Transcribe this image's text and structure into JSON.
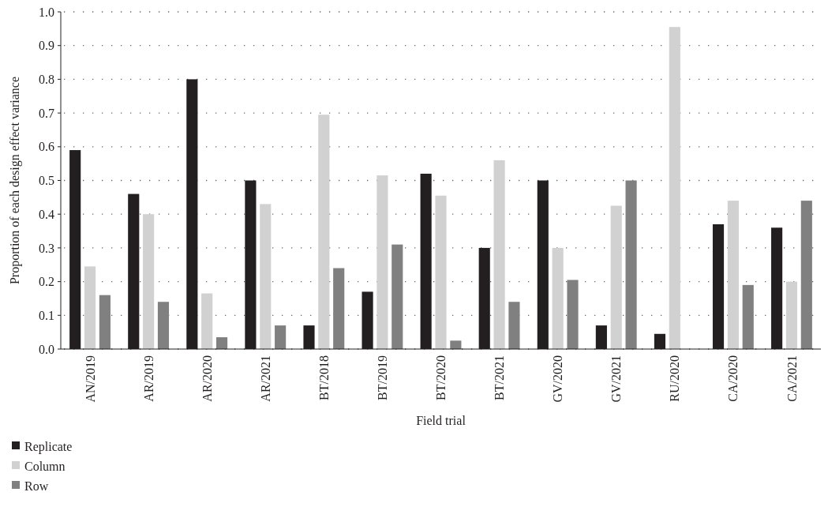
{
  "chart_data": {
    "type": "bar",
    "xlabel": "Field trial",
    "ylabel": "Proportion of each design effect variance",
    "categories": [
      "AN/2019",
      "AR/2019",
      "AR/2020",
      "AR/2021",
      "BT/2018",
      "BT/2019",
      "BT/2020",
      "BT/2021",
      "GV/2020",
      "GV/2021",
      "RU/2020",
      "CA/2020",
      "CA/2021"
    ],
    "series": [
      {
        "name": "Replicate",
        "color": "#231f20",
        "values": [
          0.59,
          0.46,
          0.8,
          0.5,
          0.07,
          0.17,
          0.52,
          0.3,
          0.5,
          0.07,
          0.045,
          0.37,
          0.36
        ]
      },
      {
        "name": "Column",
        "color": "#d1d1d1",
        "values": [
          0.245,
          0.4,
          0.165,
          0.43,
          0.695,
          0.515,
          0.455,
          0.56,
          0.3,
          0.425,
          0.955,
          0.44,
          0.2
        ]
      },
      {
        "name": "Row",
        "color": "#808080",
        "values": [
          0.16,
          0.14,
          0.035,
          0.07,
          0.24,
          0.31,
          0.025,
          0.14,
          0.205,
          0.5,
          null,
          0.19,
          0.44
        ]
      }
    ],
    "ylim": [
      0,
      1
    ],
    "yticks": [
      {
        "value": 0,
        "label": "0.0"
      },
      {
        "value": 0.1,
        "label": "0.1"
      },
      {
        "value": 0.2,
        "label": "0.2"
      },
      {
        "value": 0.3,
        "label": "0.3"
      },
      {
        "value": 0.4,
        "label": "0.4"
      },
      {
        "value": 0.5,
        "label": "0.5"
      },
      {
        "value": 0.6,
        "label": "0.6"
      },
      {
        "value": 0.7,
        "label": "0.7"
      },
      {
        "value": 0.8,
        "label": "0.8"
      },
      {
        "value": 0.9,
        "label": "0.9"
      },
      {
        "value": 1,
        "label": "1.0"
      }
    ],
    "grid": "y",
    "legend": "bottom left"
  }
}
